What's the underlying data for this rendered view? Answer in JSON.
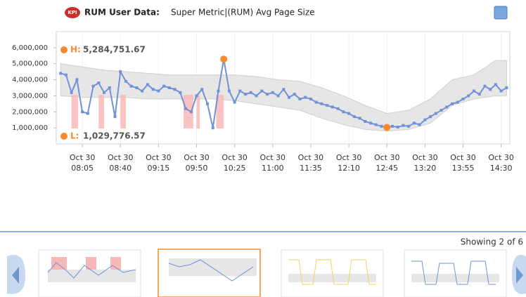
{
  "header": {
    "icon": "KPI",
    "label": "RUM User Data:",
    "metric": "Super Metric|(RUM) Avg Page Size"
  },
  "chart_data": {
    "type": "line",
    "color": "#6f93d6",
    "grid": "x",
    "xlim": [
      "07:41",
      "14:38"
    ],
    "ylim": [
      0,
      7000000
    ],
    "yticks": [
      {
        "value": 1000000,
        "label": "1,000,000"
      },
      {
        "value": 2000000,
        "label": "2,000,000"
      },
      {
        "value": 3000000,
        "label": "3,000,000"
      },
      {
        "value": 4000000,
        "label": "4,000,000"
      },
      {
        "value": 5000000,
        "label": "5,000,000"
      },
      {
        "value": 6000000,
        "label": "6,000,000"
      }
    ],
    "xticks": [
      {
        "date": "Oct 30",
        "time": "08:05"
      },
      {
        "date": "Oct 30",
        "time": "08:40"
      },
      {
        "date": "Oct 30",
        "time": "09:15"
      },
      {
        "date": "Oct 30",
        "time": "09:50"
      },
      {
        "date": "Oct 30",
        "time": "10:25"
      },
      {
        "date": "Oct 30",
        "time": "11:00"
      },
      {
        "date": "Oct 30",
        "time": "11:35"
      },
      {
        "date": "Oct 30",
        "time": "12:10"
      },
      {
        "date": "Oct 30",
        "time": "12:45"
      },
      {
        "date": "Oct 30",
        "time": "13:20"
      },
      {
        "date": "Oct 30",
        "time": "13:55"
      },
      {
        "date": "Oct 30",
        "time": "14:30"
      }
    ],
    "x": [
      "07:45",
      "07:50",
      "07:55",
      "08:00",
      "08:05",
      "08:10",
      "08:15",
      "08:20",
      "08:25",
      "08:30",
      "08:35",
      "08:40",
      "08:45",
      "08:50",
      "08:55",
      "09:00",
      "09:05",
      "09:10",
      "09:15",
      "09:20",
      "09:25",
      "09:30",
      "09:35",
      "09:40",
      "09:45",
      "09:50",
      "09:55",
      "10:00",
      "10:05",
      "10:10",
      "10:15",
      "10:20",
      "10:25",
      "10:30",
      "10:35",
      "10:40",
      "10:45",
      "10:50",
      "10:55",
      "11:00",
      "11:05",
      "11:10",
      "11:15",
      "11:20",
      "11:25",
      "11:30",
      "11:35",
      "11:40",
      "11:45",
      "11:50",
      "11:55",
      "12:00",
      "12:05",
      "12:10",
      "12:15",
      "12:20",
      "12:25",
      "12:30",
      "12:35",
      "12:40",
      "12:45",
      "12:50",
      "12:55",
      "13:00",
      "13:05",
      "13:10",
      "13:15",
      "13:20",
      "13:25",
      "13:30",
      "13:35",
      "13:40",
      "13:45",
      "13:50",
      "13:55",
      "14:00",
      "14:05",
      "14:10",
      "14:15",
      "14:20",
      "14:25",
      "14:30",
      "14:35"
    ],
    "values": [
      4400000,
      4300000,
      3200000,
      4000000,
      2000000,
      1900000,
      3600000,
      3800000,
      3200000,
      3500000,
      1700000,
      4500000,
      3900000,
      3600000,
      3500000,
      3300000,
      3700000,
      3400000,
      3300000,
      3600000,
      3500000,
      3400000,
      3200000,
      2200000,
      2000000,
      3000000,
      3400000,
      2500000,
      1000000,
      3300000,
      5284751.67,
      3300000,
      2600000,
      3300000,
      3100000,
      3200000,
      3000000,
      3300000,
      3100000,
      3200000,
      3000000,
      3400000,
      2900000,
      3100000,
      2800000,
      2900000,
      2800000,
      2600000,
      2500000,
      2400000,
      2300000,
      2200000,
      2000000,
      1900000,
      1700000,
      1600000,
      1400000,
      1300000,
      1200000,
      1100000,
      1029776.57,
      1100000,
      1050000,
      1150000,
      1100000,
      1300000,
      1200000,
      1500000,
      1700000,
      1900000,
      2100000,
      2300000,
      2500000,
      2600000,
      2800000,
      3000000,
      3300000,
      3100000,
      3600000,
      3400000,
      3700000,
      3300000,
      3500000
    ],
    "band": {
      "color": "#e6e6e6",
      "x": [
        "07:45",
        "08:05",
        "08:25",
        "08:45",
        "09:05",
        "09:25",
        "09:45",
        "10:05",
        "10:25",
        "10:45",
        "11:05",
        "11:25",
        "11:45",
        "12:05",
        "12:25",
        "12:45",
        "13:05",
        "13:25",
        "13:45",
        "14:05",
        "14:25",
        "14:35"
      ],
      "upper": [
        5000000,
        4800000,
        4600000,
        4500000,
        4400000,
        4300000,
        4300000,
        4300000,
        4300000,
        4200000,
        4000000,
        3900000,
        3500000,
        3000000,
        2400000,
        1900000,
        2100000,
        2800000,
        4000000,
        4300000,
        5200000,
        5200000
      ],
      "lower": [
        3000000,
        2900000,
        2900000,
        2900000,
        2800000,
        2800000,
        2800000,
        2800000,
        2700000,
        2500000,
        2300000,
        2100000,
        1600000,
        1200000,
        900000,
        800000,
        900000,
        1300000,
        2400000,
        2800000,
        3000000,
        3000000
      ]
    },
    "anomalies": {
      "color": "#f9b8b8",
      "ranges": [
        {
          "start": "07:55",
          "end": "08:01"
        },
        {
          "start": "08:20",
          "end": "08:25"
        },
        {
          "start": "08:40",
          "end": "08:45"
        },
        {
          "start": "09:38",
          "end": "09:47"
        },
        {
          "start": "09:50",
          "end": "09:53"
        },
        {
          "start": "10:08",
          "end": "10:15"
        }
      ]
    },
    "high": {
      "label": "H:",
      "value": 5284751.67,
      "value_label": "5,284,751.67",
      "x": "10:15",
      "color": "#f58a2e"
    },
    "low": {
      "label": "L:",
      "value": 1029776.57,
      "value_label": "1,029,776.57",
      "x": "12:45",
      "color": "#f58a2e"
    }
  },
  "carousel": {
    "status": "Showing 2 of 6"
  }
}
